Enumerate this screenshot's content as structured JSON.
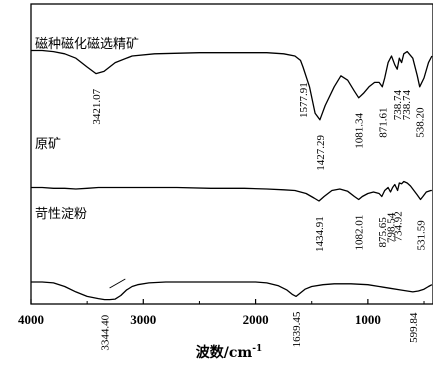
{
  "chart_data": {
    "type": "line",
    "title": "",
    "xlabel": "波数/cm",
    "xlabel_sup": "-1",
    "ylabel": "",
    "x_reversed": true,
    "xlim": [
      4000,
      420
    ],
    "x_ticks": [
      4000,
      3000,
      2000,
      1000
    ],
    "x_tick_labels": [
      "4000",
      "3000",
      "2000",
      "1000"
    ],
    "grid": false,
    "legend": "none",
    "series": [
      {
        "name": "磁种磁化磁选精矿",
        "points": [
          [
            4000,
            0.95
          ],
          [
            3900,
            0.95
          ],
          [
            3800,
            0.94
          ],
          [
            3700,
            0.92
          ],
          [
            3600,
            0.88
          ],
          [
            3500,
            0.8
          ],
          [
            3421.07,
            0.74
          ],
          [
            3350,
            0.76
          ],
          [
            3250,
            0.84
          ],
          [
            3100,
            0.9
          ],
          [
            2900,
            0.92
          ],
          [
            2500,
            0.93
          ],
          [
            2100,
            0.93
          ],
          [
            1900,
            0.93
          ],
          [
            1750,
            0.92
          ],
          [
            1650,
            0.9
          ],
          [
            1600,
            0.86
          ],
          [
            1577.91,
            0.8
          ],
          [
            1520,
            0.62
          ],
          [
            1470,
            0.38
          ],
          [
            1427.29,
            0.32
          ],
          [
            1380,
            0.45
          ],
          [
            1300,
            0.62
          ],
          [
            1240,
            0.72
          ],
          [
            1180,
            0.68
          ],
          [
            1120,
            0.58
          ],
          [
            1081.34,
            0.52
          ],
          [
            1040,
            0.56
          ],
          [
            990,
            0.62
          ],
          [
            940,
            0.66
          ],
          [
            900,
            0.66
          ],
          [
            871.61,
            0.62
          ],
          [
            850,
            0.7
          ],
          [
            820,
            0.84
          ],
          [
            790,
            0.9
          ],
          [
            760,
            0.82
          ],
          [
            738.74,
            0.78
          ],
          [
            720,
            0.88
          ],
          [
            700,
            0.84
          ],
          [
            680,
            0.92
          ],
          [
            650,
            0.94
          ],
          [
            600,
            0.88
          ],
          [
            560,
            0.72
          ],
          [
            538.2,
            0.62
          ],
          [
            500,
            0.7
          ],
          [
            460,
            0.84
          ],
          [
            430,
            0.9
          ]
        ],
        "peaks": [
          3421.07,
          1577.91,
          1427.29,
          1081.34,
          871.61,
          738.74,
          738.74,
          538.2
        ],
        "peak_labels": [
          "3421.07",
          "1577.91",
          "1427.29",
          "1081.34",
          "871.61",
          "738.74",
          "738.74",
          "538.20"
        ]
      },
      {
        "name": "原矿",
        "points": [
          [
            4000,
            0.5
          ],
          [
            3900,
            0.5
          ],
          [
            3800,
            0.49
          ],
          [
            3700,
            0.49
          ],
          [
            3600,
            0.48
          ],
          [
            3500,
            0.49
          ],
          [
            3400,
            0.5
          ],
          [
            3300,
            0.5
          ],
          [
            3000,
            0.5
          ],
          [
            2700,
            0.5
          ],
          [
            2400,
            0.49
          ],
          [
            2100,
            0.49
          ],
          [
            1900,
            0.48
          ],
          [
            1750,
            0.47
          ],
          [
            1650,
            0.46
          ],
          [
            1550,
            0.42
          ],
          [
            1480,
            0.36
          ],
          [
            1434.91,
            0.32
          ],
          [
            1390,
            0.38
          ],
          [
            1320,
            0.46
          ],
          [
            1250,
            0.48
          ],
          [
            1180,
            0.45
          ],
          [
            1120,
            0.38
          ],
          [
            1082.01,
            0.34
          ],
          [
            1050,
            0.38
          ],
          [
            1000,
            0.42
          ],
          [
            950,
            0.44
          ],
          [
            900,
            0.42
          ],
          [
            875.65,
            0.38
          ],
          [
            850,
            0.46
          ],
          [
            820,
            0.5
          ],
          [
            798.54,
            0.44
          ],
          [
            780,
            0.5
          ],
          [
            760,
            0.54
          ],
          [
            734.92,
            0.46
          ],
          [
            720,
            0.56
          ],
          [
            700,
            0.55
          ],
          [
            680,
            0.58
          ],
          [
            650,
            0.56
          ],
          [
            620,
            0.52
          ],
          [
            590,
            0.46
          ],
          [
            560,
            0.4
          ],
          [
            531.59,
            0.34
          ],
          [
            510,
            0.38
          ],
          [
            480,
            0.44
          ],
          [
            440,
            0.46
          ],
          [
            430,
            0.46
          ]
        ],
        "peaks": [
          1434.91,
          1082.01,
          875.65,
          798.54,
          734.92,
          531.59
        ],
        "peak_labels": [
          "1434.91",
          "1082.01",
          "875.65",
          "798.54",
          "734.92",
          "531.59"
        ]
      },
      {
        "name": "苛性淀粉",
        "points": [
          [
            4000,
            0.2
          ],
          [
            3900,
            0.2
          ],
          [
            3800,
            0.19
          ],
          [
            3700,
            0.15
          ],
          [
            3600,
            0.09
          ],
          [
            3500,
            0.04
          ],
          [
            3400,
            0.015
          ],
          [
            3344.4,
            0.005
          ],
          [
            3300,
            0.004
          ],
          [
            3250,
            0.01
          ],
          [
            3200,
            0.05
          ],
          [
            3150,
            0.11
          ],
          [
            3100,
            0.15
          ],
          [
            3050,
            0.17
          ],
          [
            2950,
            0.19
          ],
          [
            2800,
            0.2
          ],
          [
            2500,
            0.2
          ],
          [
            2200,
            0.2
          ],
          [
            2000,
            0.2
          ],
          [
            1900,
            0.19
          ],
          [
            1800,
            0.16
          ],
          [
            1720,
            0.11
          ],
          [
            1670,
            0.06
          ],
          [
            1639.45,
            0.04
          ],
          [
            1610,
            0.07
          ],
          [
            1560,
            0.12
          ],
          [
            1500,
            0.15
          ],
          [
            1400,
            0.17
          ],
          [
            1300,
            0.18
          ],
          [
            1150,
            0.18
          ],
          [
            1000,
            0.17
          ],
          [
            900,
            0.15
          ],
          [
            800,
            0.13
          ],
          [
            700,
            0.11
          ],
          [
            650,
            0.1
          ],
          [
            599.84,
            0.09
          ],
          [
            550,
            0.1
          ],
          [
            500,
            0.12
          ],
          [
            460,
            0.15
          ],
          [
            430,
            0.17
          ]
        ],
        "peaks": [
          3344.4,
          1639.45,
          599.84
        ],
        "peak_labels": [
          "3344.40",
          "1639.45",
          "599.84"
        ]
      }
    ]
  }
}
